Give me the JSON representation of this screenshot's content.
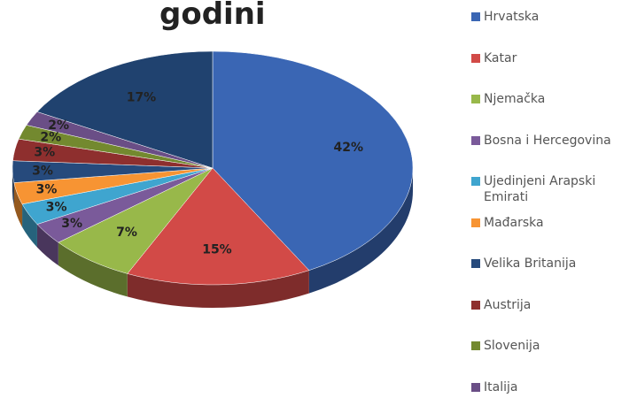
{
  "chart_data": {
    "type": "pie",
    "title": "godini",
    "categories": [
      "Hrvatska",
      "Katar",
      "Njemačka",
      "Bosna i Hercegovina",
      "Ujedinjeni Arapski Emirati",
      "Mađarska",
      "Velika Britanija",
      "Austrija",
      "Slovenija",
      "Italija",
      null
    ],
    "values": [
      42,
      15,
      7,
      3,
      3,
      3,
      3,
      3,
      2,
      2,
      17
    ],
    "value_labels": [
      "42%",
      "15%",
      "7%",
      "3%",
      "3%",
      "3%",
      "3%",
      "3%",
      "2%",
      "2%",
      "17%"
    ],
    "colors": [
      "#3a66b4",
      "#d24a47",
      "#98b84a",
      "#7a5a9a",
      "#3fa5cf",
      "#f79433",
      "#264a7c",
      "#8e2f2e",
      "#73892f",
      "#6a4e86",
      "#20426f"
    ],
    "legend": "right"
  }
}
